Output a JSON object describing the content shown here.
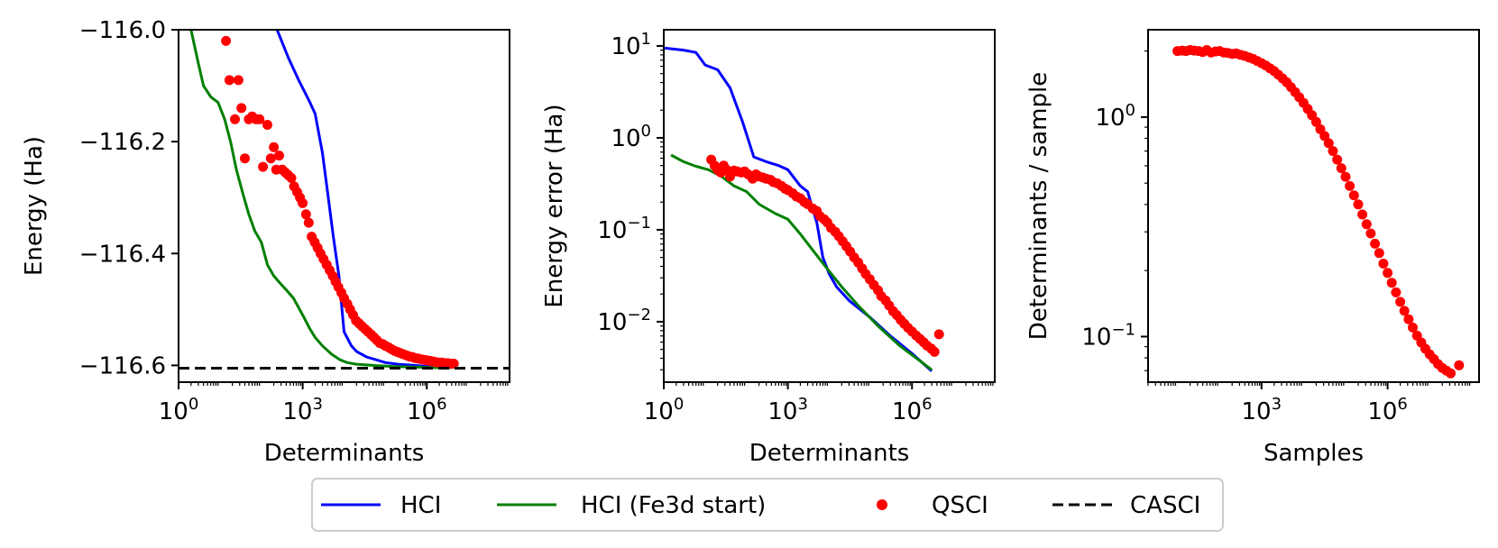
{
  "chart_data": [
    {
      "type": "line",
      "panel": "energy",
      "xlabel": "Determinants",
      "ylabel": "Energy (Ha)",
      "xscale": "log",
      "yscale": "linear",
      "xlim": [
        1,
        100000000
      ],
      "ylim": [
        -116.63,
        -116.0
      ],
      "xticks": [
        {
          "value": 1,
          "base": "10",
          "exp": "0"
        },
        {
          "value": 1000,
          "base": "10",
          "exp": "3"
        },
        {
          "value": 1000000,
          "base": "10",
          "exp": "6"
        }
      ],
      "yticks": [
        {
          "value": -116.0,
          "label": "−116.0"
        },
        {
          "value": -116.2,
          "label": "−116.2"
        },
        {
          "value": -116.4,
          "label": "−116.4"
        },
        {
          "value": -116.6,
          "label": "−116.6"
        }
      ],
      "series": [
        {
          "name": "HCI",
          "kind": "line",
          "color": "#0000ff",
          "x": [
            240,
            350,
            450,
            600,
            800,
            1100,
            1500,
            2000,
            3000,
            4000,
            5500,
            7500,
            10000,
            15000,
            20000,
            35000,
            60000,
            100000,
            200000,
            500000,
            1000000,
            3000000
          ],
          "y": [
            -116.0,
            -116.03,
            -116.05,
            -116.07,
            -116.09,
            -116.11,
            -116.13,
            -116.15,
            -116.22,
            -116.29,
            -116.37,
            -116.44,
            -116.54,
            -116.565,
            -116.575,
            -116.585,
            -116.59,
            -116.595,
            -116.598,
            -116.6,
            -116.602,
            -116.603
          ]
        },
        {
          "name": "HCI (Fe3d start)",
          "kind": "line",
          "color": "#008000",
          "x": [
            2,
            3,
            4,
            6,
            9,
            13,
            18,
            25,
            35,
            50,
            70,
            100,
            140,
            200,
            300,
            400,
            600,
            1000,
            1500,
            2000,
            3000,
            5000,
            8000,
            12000,
            20000,
            50000,
            150000,
            500000,
            1500000,
            4000000
          ],
          "y": [
            -116.0,
            -116.06,
            -116.1,
            -116.12,
            -116.13,
            -116.16,
            -116.2,
            -116.25,
            -116.29,
            -116.33,
            -116.36,
            -116.38,
            -116.42,
            -116.44,
            -116.455,
            -116.465,
            -116.48,
            -116.51,
            -116.535,
            -116.55,
            -116.565,
            -116.58,
            -116.59,
            -116.595,
            -116.598,
            -116.6,
            -116.602,
            -116.603,
            -116.604,
            -116.604
          ]
        },
        {
          "name": "QSCI",
          "kind": "scatter",
          "color": "#ff0000",
          "x": [
            14,
            17,
            23,
            28,
            33,
            40,
            50,
            60,
            75,
            90,
            110,
            140,
            170,
            200,
            230,
            270,
            320,
            380,
            450,
            530,
            620,
            730,
            860,
            1000,
            1200,
            1400,
            1650,
            1950,
            2300,
            2700,
            3200,
            3800,
            4500,
            5300,
            6200,
            7300,
            8600,
            10000,
            12000,
            14000,
            16500,
            19500,
            23000,
            27000,
            32000,
            38000,
            45000,
            53000,
            62000,
            73000,
            86000,
            100000,
            120000,
            140000,
            165000,
            195000,
            230000,
            270000,
            320000,
            380000,
            450000,
            530000,
            620000,
            730000,
            860000,
            1000000,
            1200000,
            1400000,
            1650000,
            1950000,
            2300000,
            2700000,
            3200000,
            3800000,
            4500000
          ],
          "y": [
            -116.02,
            -116.09,
            -116.16,
            -116.09,
            -116.14,
            -116.23,
            -116.16,
            -116.155,
            -116.16,
            -116.16,
            -116.245,
            -116.17,
            -116.23,
            -116.21,
            -116.25,
            -116.225,
            -116.25,
            -116.255,
            -116.26,
            -116.265,
            -116.28,
            -116.29,
            -116.3,
            -116.31,
            -116.33,
            -116.345,
            -116.37,
            -116.38,
            -116.39,
            -116.4,
            -116.41,
            -116.42,
            -116.43,
            -116.44,
            -116.45,
            -116.46,
            -116.47,
            -116.48,
            -116.49,
            -116.5,
            -116.51,
            -116.52,
            -116.525,
            -116.53,
            -116.535,
            -116.54,
            -116.545,
            -116.55,
            -116.555,
            -116.56,
            -116.562,
            -116.565,
            -116.568,
            -116.571,
            -116.574,
            -116.576,
            -116.578,
            -116.58,
            -116.582,
            -116.584,
            -116.585,
            -116.587,
            -116.588,
            -116.589,
            -116.59,
            -116.591,
            -116.592,
            -116.593,
            -116.594,
            -116.595,
            -116.595,
            -116.596,
            -116.596,
            -116.597,
            -116.597
          ]
        },
        {
          "name": "CASCI",
          "kind": "hline",
          "color": "#000000",
          "y": -116.605
        }
      ]
    },
    {
      "type": "line",
      "panel": "energy-error",
      "xlabel": "Determinants",
      "ylabel": "Energy error (Ha)",
      "xscale": "log",
      "yscale": "log",
      "xlim": [
        1,
        100000000
      ],
      "ylim": [
        0.0022,
        15
      ],
      "xticks": [
        {
          "value": 1,
          "base": "10",
          "exp": "0"
        },
        {
          "value": 1000,
          "base": "10",
          "exp": "3"
        },
        {
          "value": 1000000,
          "base": "10",
          "exp": "6"
        }
      ],
      "yticks": [
        {
          "value": 10,
          "base": "10",
          "exp": "1"
        },
        {
          "value": 1,
          "base": "10",
          "exp": "0"
        },
        {
          "value": 0.1,
          "base": "10",
          "exp": "−1"
        },
        {
          "value": 0.01,
          "base": "10",
          "exp": "−2"
        }
      ],
      "series": [
        {
          "name": "HCI",
          "kind": "line",
          "color": "#0000ff",
          "x": [
            1,
            3,
            6,
            10,
            20,
            40,
            80,
            150,
            300,
            600,
            1000,
            2000,
            3000,
            5000,
            7000,
            10000,
            15000,
            30000,
            100000,
            300000,
            1000000,
            3000000
          ],
          "y": [
            9.5,
            9,
            8.5,
            6.2,
            5.5,
            3.5,
            1.5,
            0.62,
            0.55,
            0.5,
            0.45,
            0.3,
            0.26,
            0.12,
            0.05,
            0.033,
            0.024,
            0.017,
            0.011,
            0.007,
            0.0045,
            0.0029
          ]
        },
        {
          "name": "HCI (Fe3d start)",
          "kind": "line",
          "color": "#008000",
          "x": [
            1.5,
            3,
            6,
            12,
            25,
            50,
            100,
            200,
            500,
            1000,
            2000,
            4000,
            8000,
            20000,
            50000,
            150000,
            500000,
            1500000,
            3000000
          ],
          "y": [
            0.65,
            0.55,
            0.49,
            0.45,
            0.38,
            0.3,
            0.26,
            0.19,
            0.15,
            0.13,
            0.09,
            0.06,
            0.04,
            0.024,
            0.015,
            0.009,
            0.0055,
            0.0038,
            0.003
          ]
        },
        {
          "name": "QSCI",
          "kind": "scatter",
          "color": "#ff0000",
          "x": [
            14,
            17,
            20,
            24,
            28,
            33,
            40,
            50,
            60,
            75,
            90,
            110,
            140,
            170,
            200,
            250,
            300,
            380,
            450,
            550,
            700,
            850,
            1000,
            1300,
            1600,
            2000,
            2500,
            3000,
            4000,
            5000,
            6000,
            7500,
            9000,
            11000,
            14000,
            17000,
            21000,
            26000,
            32000,
            40000,
            50000,
            62000,
            76000,
            95000,
            120000,
            150000,
            180000,
            230000,
            280000,
            350000,
            430000,
            530000,
            650000,
            800000,
            1000000,
            1250000,
            1550000,
            1900000,
            2300000,
            2900000,
            3500000,
            4500000
          ],
          "y": [
            0.58,
            0.5,
            0.45,
            0.42,
            0.5,
            0.45,
            0.38,
            0.44,
            0.43,
            0.42,
            0.43,
            0.4,
            0.36,
            0.4,
            0.38,
            0.37,
            0.36,
            0.35,
            0.33,
            0.32,
            0.3,
            0.28,
            0.27,
            0.25,
            0.23,
            0.22,
            0.2,
            0.19,
            0.17,
            0.16,
            0.14,
            0.13,
            0.12,
            0.105,
            0.095,
            0.085,
            0.075,
            0.066,
            0.058,
            0.05,
            0.044,
            0.038,
            0.033,
            0.029,
            0.025,
            0.022,
            0.019,
            0.017,
            0.015,
            0.013,
            0.0118,
            0.0105,
            0.0095,
            0.0086,
            0.0078,
            0.0071,
            0.0065,
            0.006,
            0.0055,
            0.0051,
            0.0047,
            0.0073
          ]
        }
      ]
    },
    {
      "type": "scatter",
      "panel": "determinants-per-sample",
      "xlabel": "Samples",
      "ylabel": "Determinants / sample",
      "xscale": "log",
      "yscale": "log",
      "xlim": [
        2,
        150000000
      ],
      "ylim": [
        0.062,
        2.5
      ],
      "xticks": [
        {
          "value": 1000,
          "base": "10",
          "exp": "3"
        },
        {
          "value": 1000000,
          "base": "10",
          "exp": "6"
        }
      ],
      "yticks": [
        {
          "value": 1,
          "base": "10",
          "exp": "0"
        },
        {
          "value": 0.1,
          "base": "10",
          "exp": "−1"
        }
      ],
      "series": [
        {
          "name": "QSCI",
          "kind": "scatter",
          "color": "#ff0000",
          "x": [
            10,
            13,
            16,
            20,
            25,
            32,
            40,
            50,
            63,
            80,
            100,
            126,
            158,
            200,
            251,
            316,
            398,
            501,
            631,
            794,
            1000,
            1259,
            1585,
            1995,
            2512,
            3162,
            3981,
            5012,
            6310,
            7943,
            10000,
            12589,
            15849,
            19953,
            25119,
            31623,
            39811,
            50119,
            63096,
            79433,
            100000,
            125893,
            158489,
            199526,
            251189,
            316228,
            398107,
            501187,
            630957,
            794328,
            1000000,
            1258925,
            1584893,
            1995262,
            2511886,
            3162278,
            3981072,
            5011872,
            6309573,
            7943282,
            10000000,
            12589254,
            15848932,
            19952623,
            25118864,
            31622777,
            50118723
          ],
          "y": [
            2.0,
            2.01,
            2.0,
            2.02,
            2.01,
            2.0,
            1.98,
            2.02,
            1.97,
            1.99,
            2.0,
            1.97,
            1.96,
            1.94,
            1.95,
            1.92,
            1.9,
            1.87,
            1.84,
            1.8,
            1.76,
            1.72,
            1.67,
            1.62,
            1.56,
            1.5,
            1.44,
            1.37,
            1.3,
            1.23,
            1.16,
            1.09,
            1.02,
            0.95,
            0.88,
            0.82,
            0.76,
            0.7,
            0.64,
            0.585,
            0.535,
            0.485,
            0.44,
            0.4,
            0.36,
            0.325,
            0.295,
            0.265,
            0.24,
            0.215,
            0.195,
            0.176,
            0.159,
            0.144,
            0.131,
            0.12,
            0.11,
            0.101,
            0.094,
            0.088,
            0.083,
            0.079,
            0.075,
            0.072,
            0.07,
            0.068,
            0.074
          ]
        }
      ]
    }
  ],
  "legend": {
    "placement": "bottom-center",
    "entries": [
      {
        "label": "HCI",
        "color": "#0000ff",
        "style": "line"
      },
      {
        "label": "HCI (Fe3d start)",
        "color": "#008000",
        "style": "line"
      },
      {
        "label": "QSCI",
        "color": "#ff0000",
        "style": "marker"
      },
      {
        "label": "CASCI",
        "color": "#000000",
        "style": "dashed"
      }
    ]
  }
}
